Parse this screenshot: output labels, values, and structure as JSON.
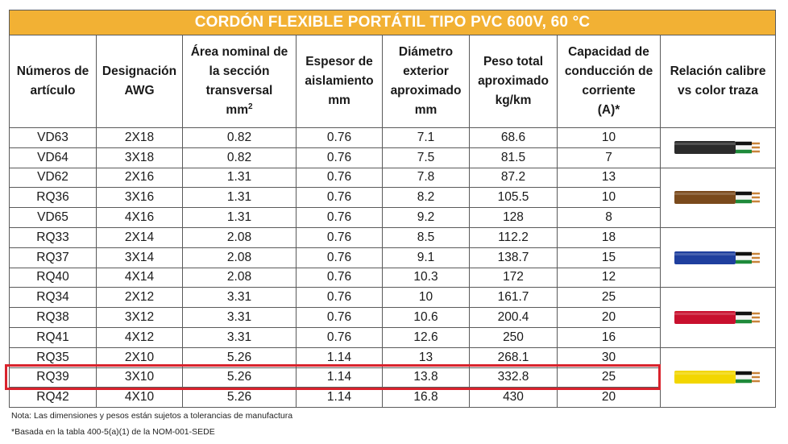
{
  "title": "CORDÓN FLEXIBLE PORTÁTIL TIPO PVC 600V, 60 °C",
  "headers": {
    "article": [
      "Números de",
      "artículo"
    ],
    "awg": [
      "Designación",
      "AWG"
    ],
    "area": [
      "Área nominal de",
      "la sección",
      "transversal",
      "mm",
      "2"
    ],
    "insulation": [
      "Espesor de",
      "aislamiento",
      "mm"
    ],
    "diameter": [
      "Diámetro",
      "exterior",
      "aproximado",
      "mm"
    ],
    "weight": [
      "Peso total",
      "aproximado",
      "kg/km"
    ],
    "capacity": [
      "Capacidad de",
      "conducción de",
      "corriente",
      "(A)*"
    ],
    "relation": [
      "Relación calibre",
      "vs color traza"
    ]
  },
  "rows": [
    [
      "VD63",
      "2X18",
      "0.82",
      "0.76",
      "7.1",
      "68.6",
      "10"
    ],
    [
      "VD64",
      "3X18",
      "0.82",
      "0.76",
      "7.5",
      "81.5",
      "7"
    ],
    [
      "VD62",
      "2X16",
      "1.31",
      "0.76",
      "7.8",
      "87.2",
      "13"
    ],
    [
      "RQ36",
      "3X16",
      "1.31",
      "0.76",
      "8.2",
      "105.5",
      "10"
    ],
    [
      "VD65",
      "4X16",
      "1.31",
      "0.76",
      "9.2",
      "128",
      "8"
    ],
    [
      "RQ33",
      "2X14",
      "2.08",
      "0.76",
      "8.5",
      "112.2",
      "18"
    ],
    [
      "RQ37",
      "3X14",
      "2.08",
      "0.76",
      "9.1",
      "138.7",
      "15"
    ],
    [
      "RQ40",
      "4X14",
      "2.08",
      "0.76",
      "10.3",
      "172",
      "12"
    ],
    [
      "RQ34",
      "2X12",
      "3.31",
      "0.76",
      "10",
      "161.7",
      "25"
    ],
    [
      "RQ38",
      "3X12",
      "3.31",
      "0.76",
      "10.6",
      "200.4",
      "20"
    ],
    [
      "RQ41",
      "4X12",
      "3.31",
      "0.76",
      "12.6",
      "250",
      "16"
    ],
    [
      "RQ35",
      "2X10",
      "5.26",
      "1.14",
      "13",
      "268.1",
      "30"
    ],
    [
      "RQ39",
      "3X10",
      "5.26",
      "1.14",
      "13.8",
      "332.8",
      "25"
    ],
    [
      "RQ42",
      "4X10",
      "5.26",
      "1.14",
      "16.8",
      "430",
      "20"
    ]
  ],
  "cable_groups": [
    {
      "gauge": "18 AWG",
      "color": "#2b2b2b"
    },
    {
      "gauge": "16 AWG",
      "color": "#7a4a1c"
    },
    {
      "gauge": "14 AWG",
      "color": "#1f3f9e"
    },
    {
      "gauge": "12 AWG",
      "color": "#c8102e"
    },
    {
      "gauge": "10 AWG",
      "color": "#f2d600"
    }
  ],
  "highlighted_row": "RQ39",
  "highlight_color": "#d9232d",
  "header_color": "#f2b134",
  "notes": {
    "note1": "Nota: Las dimensiones y pesos están sujetos a tolerancias de manufactura",
    "note2": "*Basada en la tabla 400-5(a)(1) de la NOM-001-SEDE"
  }
}
